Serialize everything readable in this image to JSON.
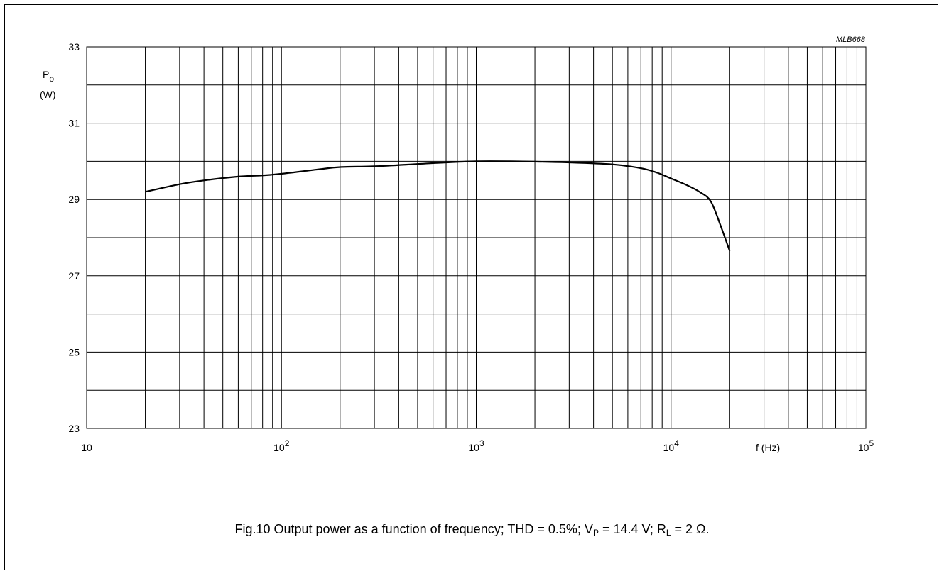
{
  "chart_data": {
    "type": "line",
    "figure_code": "MLB668",
    "caption": {
      "prefix": "Fig.10  Output power as a function of frequency; THD = 0.5%; V",
      "vp_sub": "P",
      "vp_value": " = 14.4 V; R",
      "rl_sub": "L",
      "rl_value": " = 2 Ω."
    },
    "y_axis": {
      "label_main": "P",
      "label_sub": "o",
      "unit": "(W)",
      "range": [
        23,
        33
      ],
      "ticks": [
        "23",
        "25",
        "27",
        "29",
        "31",
        "33"
      ]
    },
    "x_axis": {
      "label": "f  (Hz)",
      "scale": "log",
      "range": [
        10,
        100000
      ],
      "ticks": [
        {
          "base": "10",
          "exp": ""
        },
        {
          "base": "10",
          "exp": "2"
        },
        {
          "base": "10",
          "exp": "3"
        },
        {
          "base": "10",
          "exp": "4"
        },
        {
          "base": "10",
          "exp": "5"
        }
      ]
    },
    "grid": true,
    "series": [
      {
        "x": [
          20,
          30,
          40,
          60,
          90,
          150,
          200,
          300,
          500,
          700,
          1000,
          1500,
          2000,
          3000,
          5000,
          7000,
          8500,
          10000,
          12000,
          14000,
          16000,
          18000,
          20000
        ],
        "y": [
          29.2,
          29.4,
          29.5,
          29.6,
          29.65,
          29.78,
          29.85,
          29.87,
          29.93,
          29.97,
          30.0,
          30.0,
          29.99,
          29.97,
          29.92,
          29.82,
          29.7,
          29.55,
          29.38,
          29.2,
          28.95,
          28.3,
          27.65
        ]
      }
    ]
  }
}
